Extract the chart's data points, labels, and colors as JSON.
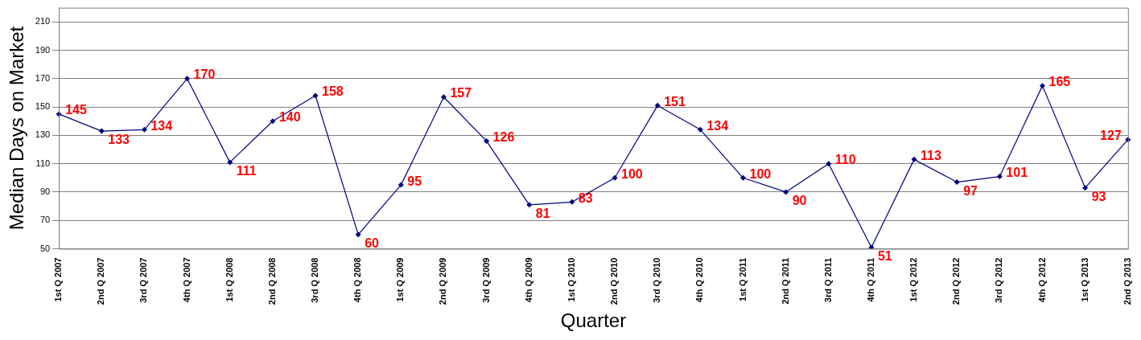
{
  "chart_data": {
    "type": "line",
    "xlabel": "Quarter",
    "ylabel": "Median Days on Market",
    "categories": [
      "1st Q 2007",
      "2nd Q 2007",
      "3rd Q 2007",
      "4th Q 2007",
      "1st Q 2008",
      "2nd Q 2008",
      "3rd Q 2008",
      "4th Q 2008",
      "1st Q 2009",
      "2nd Q 2009",
      "3rd Q 2009",
      "4th Q 2009",
      "1st Q 2010",
      "2nd Q 2010",
      "3rd Q 2010",
      "4th Q 2010",
      "1st Q 2011",
      "2nd Q 2011",
      "3rd Q 2011",
      "4th Q 2011",
      "1st Q 2012",
      "2nd Q 2012",
      "3rd Q 2012",
      "4th Q 2012",
      "1st Q 2013",
      "2nd Q 2013"
    ],
    "series": [
      {
        "color": "#000080",
        "values": [
          145,
          133,
          134,
          170,
          111,
          140,
          158,
          60,
          95,
          157,
          126,
          81,
          83,
          100,
          151,
          134,
          100,
          90,
          110,
          51,
          113,
          97,
          101,
          165,
          93,
          127
        ]
      }
    ],
    "ylim": [
      50,
      220
    ],
    "yticks": [
      50,
      70,
      90,
      110,
      130,
      150,
      170,
      190,
      210
    ],
    "grid": "y",
    "marker": "diamond",
    "line_style": "solid",
    "data_labels": true,
    "legend": false
  }
}
